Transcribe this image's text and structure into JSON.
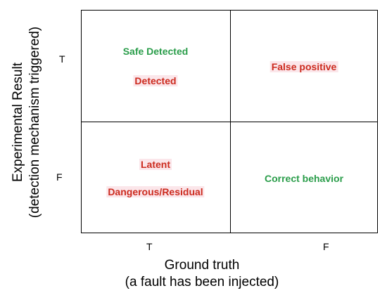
{
  "y_axis": {
    "title_line1": "Experimental Result",
    "title_line2": "(detection mechanism triggered)",
    "tick_top": "T",
    "tick_bottom": "F"
  },
  "x_axis": {
    "title_line1": "Ground truth",
    "title_line2": "(a fault has been injected)",
    "tick_left": "T",
    "tick_right": "F"
  },
  "cells": {
    "top_left": {
      "line1": "Safe Detected",
      "line2": "Detected"
    },
    "top_right": {
      "line1": "False positive"
    },
    "bottom_left": {
      "line1": "Latent",
      "line2": "Dangerous/Residual"
    },
    "bottom_right": {
      "line1": "Correct behavior"
    }
  },
  "colors": {
    "safe": "#2a9d4a",
    "dangerous": "#cc2b1f",
    "highlight": "#fbe6ea"
  }
}
